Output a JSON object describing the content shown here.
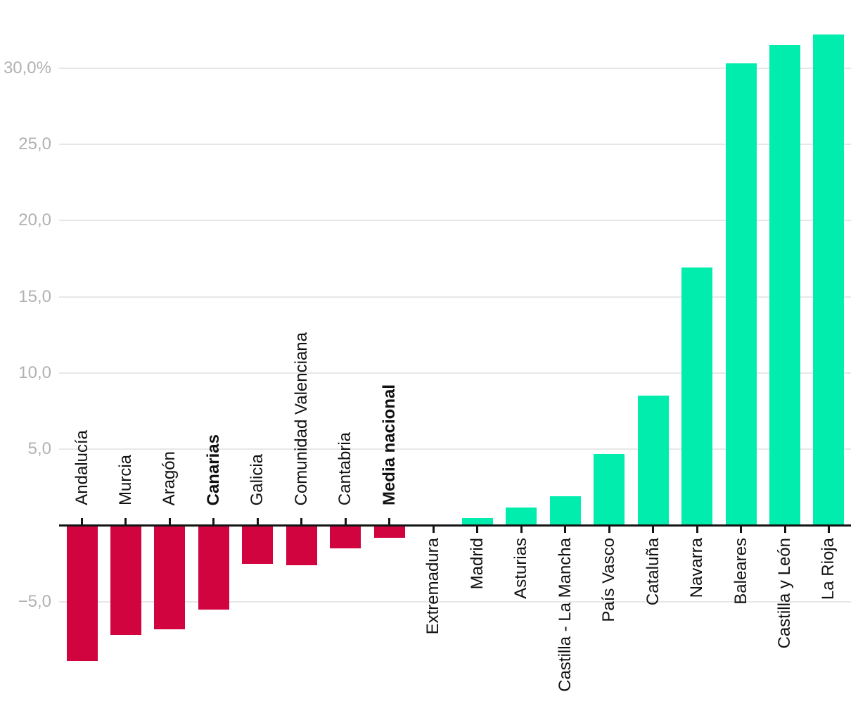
{
  "chart_data": {
    "type": "bar",
    "title": "",
    "xlabel": "",
    "ylabel": "",
    "unit": "%",
    "decimal_separator": ",",
    "grid": true,
    "legend": false,
    "ylim": [
      -9.6,
      33.6
    ],
    "categories": [
      "Andalucía",
      "Murcia",
      "Aragón",
      "Canarias",
      "Galicia",
      "Comunidad Valenciana",
      "Cantabria",
      "Media nacional",
      "Extremadura",
      "Madrid",
      "Asturias",
      "Castilla - La Mancha",
      "País Vasco",
      "Cataluña",
      "Navarra",
      "Baleares",
      "Castilla y León",
      "La Rioja"
    ],
    "values": [
      -8.9,
      -7.2,
      -6.8,
      -5.5,
      -2.5,
      -2.6,
      -1.5,
      -0.8,
      0.0,
      0.5,
      1.2,
      1.9,
      4.7,
      8.5,
      16.9,
      30.3,
      31.5,
      32.2
    ],
    "bold_categories": [
      "Canarias",
      "Media nacional"
    ],
    "y_ticks": [
      {
        "value": 30,
        "label": "30,0%"
      },
      {
        "value": 25,
        "label": "25,0"
      },
      {
        "value": 20,
        "label": "20,0"
      },
      {
        "value": 15,
        "label": "15,0"
      },
      {
        "value": 10,
        "label": "10,0"
      },
      {
        "value": 5,
        "label": "5,0"
      },
      {
        "value": -5,
        "label": "−5,0"
      }
    ],
    "colors": {
      "positive_bar": "#00edad",
      "negative_bar": "#d10440",
      "axis": "#141414",
      "gridline": "#e7e7e7",
      "y_tick_label": "#b1b1b1",
      "category_label": "#111111"
    }
  }
}
